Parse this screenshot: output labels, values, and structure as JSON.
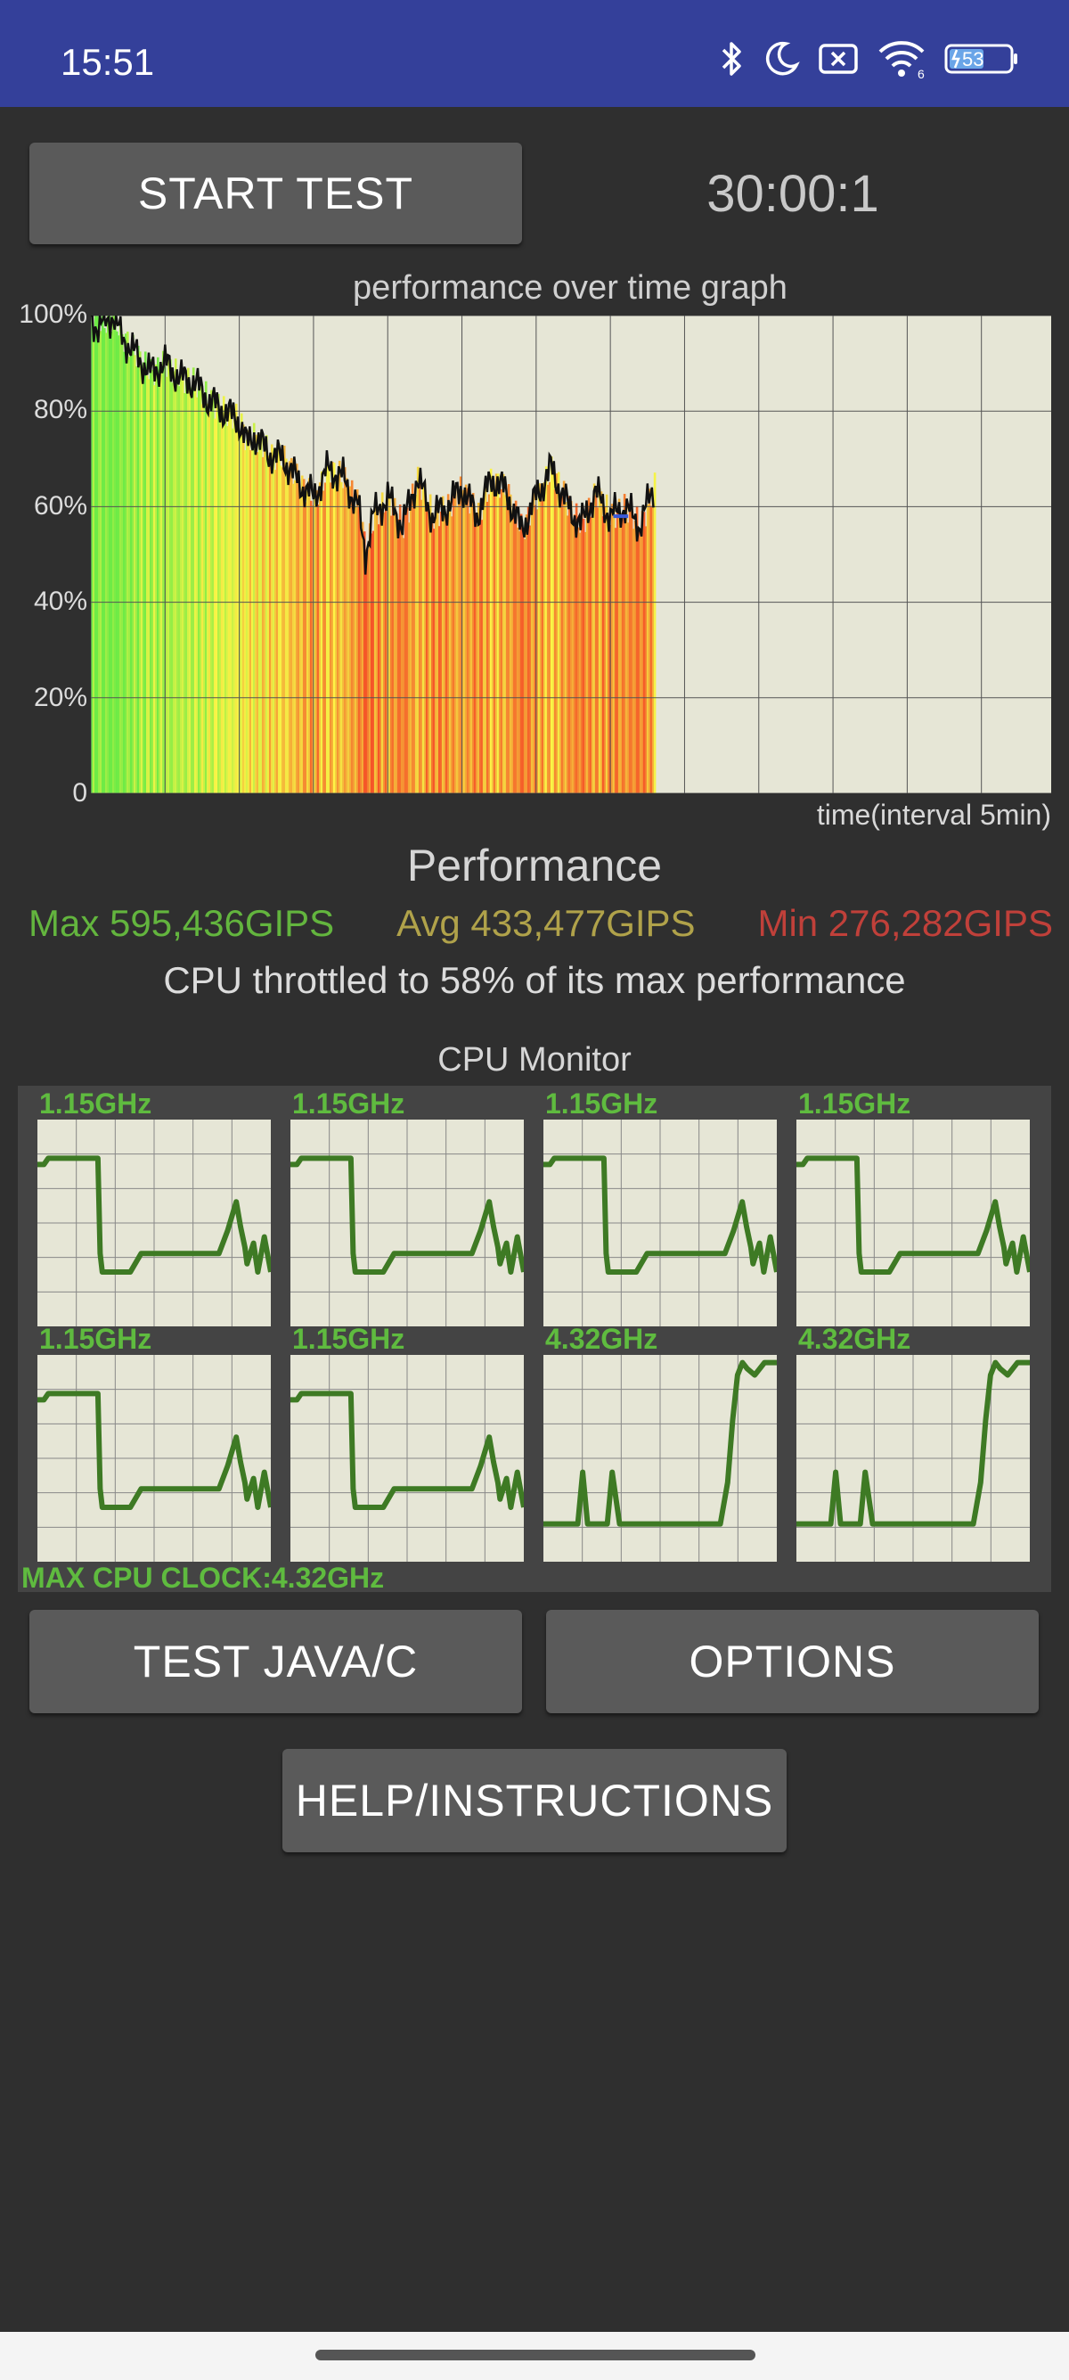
{
  "status_bar": {
    "time": "15:51",
    "battery": "53",
    "icons": [
      "bluetooth-icon",
      "moon-icon",
      "no-sim-icon",
      "wifi-icon",
      "battery-icon"
    ],
    "wifi_badge": "6"
  },
  "controls": {
    "start_label": "START TEST",
    "timer": "30:00:1"
  },
  "graph": {
    "title": "performance over time graph",
    "y_ticks": [
      "100%",
      "80%",
      "60%",
      "40%",
      "20%",
      "0"
    ],
    "x_label": "time(interval 5min)"
  },
  "chart_data": {
    "type": "area",
    "title": "performance over time graph",
    "xlabel": "time(interval 5min)",
    "ylabel": "",
    "ylim": [
      0,
      100
    ],
    "y_ticks": [
      0,
      20,
      40,
      60,
      80,
      100
    ],
    "x_max_minutes": 38,
    "grid": true,
    "series": [
      {
        "values_x_minutes": [
          0,
          0.5,
          1,
          1.5,
          2,
          3,
          4,
          5,
          6,
          7,
          8,
          9,
          10,
          10.5,
          11,
          12,
          13,
          14,
          15,
          16,
          17,
          18,
          18.5,
          19,
          20,
          21,
          22,
          22.5,
          23,
          24,
          25,
          26,
          27,
          28,
          29,
          30,
          31,
          32,
          33,
          34,
          35,
          36,
          37,
          38
        ],
        "values_y_percent": [
          100,
          97,
          99,
          100,
          96,
          92,
          88,
          90,
          87,
          86,
          82,
          80,
          78,
          73,
          75,
          71,
          70,
          65,
          62,
          68,
          66,
          60,
          50,
          58,
          62,
          56,
          66,
          62,
          58,
          60,
          64,
          58,
          66,
          63,
          55,
          62,
          68,
          61,
          56,
          63,
          58,
          60,
          56,
          65
        ]
      }
    ]
  },
  "performance": {
    "title": "Performance",
    "max": "Max 595,436GIPS",
    "avg": "Avg 433,477GIPS",
    "min": "Min 276,282GIPS",
    "throttle": "CPU throttled to 58% of its max performance",
    "colors": {
      "max": "#63b53e",
      "avg": "#b0a24a",
      "min": "#c0403a"
    }
  },
  "cpu_monitor": {
    "title": "CPU Monitor",
    "cores": [
      {
        "freq": "1.15GHz",
        "profile": "little"
      },
      {
        "freq": "1.15GHz",
        "profile": "little"
      },
      {
        "freq": "1.15GHz",
        "profile": "little"
      },
      {
        "freq": "1.15GHz",
        "profile": "little"
      },
      {
        "freq": "1.15GHz",
        "profile": "little"
      },
      {
        "freq": "1.15GHz",
        "profile": "little"
      },
      {
        "freq": "4.32GHz",
        "profile": "big"
      },
      {
        "freq": "4.32GHz",
        "profile": "big"
      }
    ],
    "max_clock": "MAX CPU CLOCK:4.32GHz"
  },
  "buttons": {
    "test_java": "TEST JAVA/C",
    "options": "OPTIONS",
    "help": "HELP/INSTRUCTIONS"
  }
}
